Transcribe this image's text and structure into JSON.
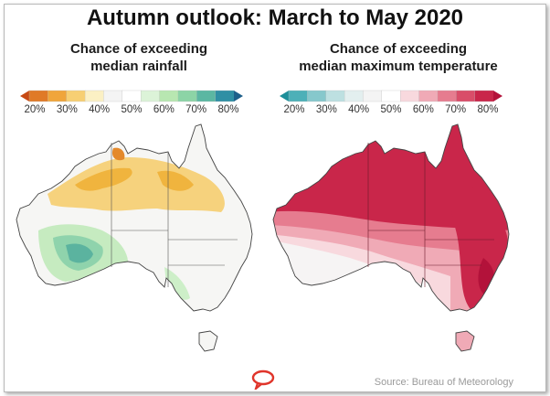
{
  "title": "Autumn outlook: March to May 2020",
  "rainfall": {
    "title_line1": "Chance of exceeding",
    "title_line2": "median rainfall",
    "ticks": [
      "20%",
      "30%",
      "40%",
      "50%",
      "60%",
      "70%",
      "80%"
    ],
    "colors": [
      "#c74a13",
      "#e07a27",
      "#f0a53b",
      "#f7cf73",
      "#fbf0c4",
      "#f4f4f4",
      "#ffffff",
      "#dcf3d8",
      "#b8e7b1",
      "#8cd4a6",
      "#5bb7a2",
      "#2f8fa4",
      "#1d5f8a"
    ]
  },
  "temperature": {
    "title_line1": "Chance of exceeding",
    "title_line2": "median maximum temperature",
    "ticks": [
      "20%",
      "30%",
      "40%",
      "50%",
      "60%",
      "70%",
      "80%"
    ],
    "colors": [
      "#1c8f9a",
      "#4db0b8",
      "#86c8cc",
      "#bde0e1",
      "#e3efef",
      "#f4f4f4",
      "#ffffff",
      "#f8d9de",
      "#f0aab6",
      "#e67c8f",
      "#d94d69",
      "#c9264a",
      "#b3123a"
    ]
  },
  "source": "Source: Bureau of Meteorology"
}
